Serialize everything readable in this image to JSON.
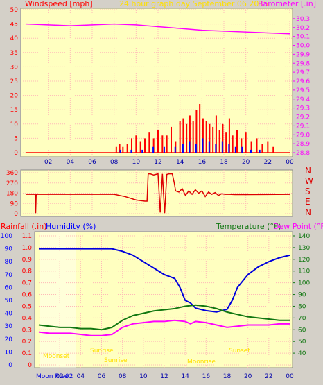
{
  "colors": {
    "panel_bg": "#ffffc0",
    "page_bg": "#d4d0c8",
    "grid": "#ffb8b8",
    "wind": "#ff0000",
    "gust_blue": "#0000ff",
    "baro": "#ff00ff",
    "dir": "#dd0000",
    "hum": "#0000dd",
    "temp": "#117711",
    "dew": "#ff00ff",
    "sun": "#ffe000",
    "red_axis": "#ff0000",
    "blue_axis": "#0000ff",
    "green_axis": "#117711",
    "magenta_axis": "#ff00ff"
  },
  "header": {
    "wind_label": "Windspeed [mph]",
    "title": "24 hour graph day   September 06 2015",
    "baro_label": "Barometer [.in]"
  },
  "lower_header": {
    "rain_label": "Rainfall (.in)",
    "hum_label": "Humidity (%)",
    "temp_label": "Temperature (°F)",
    "dew_label": "Dew Point (°F)"
  },
  "compass": [
    "N",
    "W",
    "S",
    "E",
    "N"
  ],
  "x_ticks": [
    "02",
    "04",
    "06",
    "08",
    "10",
    "12",
    "14",
    "16",
    "18",
    "20",
    "22",
    "00"
  ],
  "lower_x_ticks": [
    "02",
    "04",
    "06",
    "08",
    "10",
    "12",
    "14",
    "16",
    "18",
    "20",
    "22",
    "00"
  ],
  "annotations": {
    "moonset": "Moonset",
    "moonrise": "Moon Rise",
    "sunrise": "Sunrise",
    "sunset": "Sunset",
    "moonrise2": "Moonrise",
    "moon_time": "02"
  },
  "chart_data": [
    {
      "type": "bar",
      "title": "24 hour graph day   September 06 2015",
      "ylabel": "Windspeed [mph]",
      "ylim": [
        0,
        50
      ],
      "y_ticks": [
        0,
        5,
        10,
        15,
        20,
        25,
        30,
        35,
        40,
        45,
        50
      ],
      "x_hours": [
        0,
        24
      ],
      "series": [
        {
          "name": "Windspeed [mph]",
          "hours": [
            8.2,
            8.5,
            8.8,
            9.2,
            9.6,
            10.0,
            10.4,
            10.8,
            11.2,
            11.6,
            12.0,
            12.4,
            12.8,
            13.2,
            13.6,
            14.0,
            14.3,
            14.6,
            14.9,
            15.2,
            15.5,
            15.8,
            16.1,
            16.4,
            16.7,
            17.0,
            17.3,
            17.6,
            17.9,
            18.2,
            18.5,
            18.8,
            19.2,
            19.6,
            20.0,
            20.5,
            21.0,
            21.5,
            22.0,
            22.5
          ],
          "values": [
            2,
            3,
            2,
            3,
            5,
            6,
            4,
            5,
            7,
            5,
            8,
            6,
            6,
            9,
            4,
            11,
            12,
            10,
            13,
            11,
            15,
            17,
            12,
            11,
            10,
            9,
            13,
            8,
            10,
            7,
            12,
            6,
            8,
            5,
            7,
            4,
            5,
            3,
            4,
            2
          ]
        },
        {
          "name": "Gust",
          "hours": [
            8.5,
            9.5,
            10.5,
            11.5,
            12.5,
            13.5,
            14.2,
            14.8,
            15.4,
            16.0,
            16.6,
            17.2,
            17.8,
            18.4,
            19.0,
            19.6,
            20.4,
            21.2
          ],
          "values": [
            1,
            1,
            1,
            2,
            2,
            2,
            3,
            4,
            3,
            5,
            4,
            3,
            4,
            3,
            2,
            2,
            1,
            1
          ]
        }
      ],
      "baro_scale": {
        "ylabel": "Barometer [.in]",
        "ylim": [
          28.8,
          30.4
        ],
        "y_ticks": [
          28.8,
          28.9,
          29.0,
          29.1,
          29.2,
          29.3,
          29.4,
          29.5,
          29.6,
          29.7,
          29.8,
          29.9,
          30.0,
          30.1,
          30.2,
          30.3
        ]
      },
      "baro_series": {
        "name": "Barometer [.in]",
        "hours": [
          0,
          2,
          4,
          6,
          8,
          10,
          12,
          14,
          16,
          18,
          20,
          22,
          24
        ],
        "values": [
          30.24,
          30.23,
          30.22,
          30.23,
          30.24,
          30.23,
          30.21,
          30.19,
          30.17,
          30.16,
          30.15,
          30.14,
          30.13
        ]
      }
    },
    {
      "type": "line",
      "ylabel": "Wind direction",
      "ylim": [
        0,
        360
      ],
      "y_ticks": [
        0,
        90,
        180,
        270,
        360
      ],
      "series": [
        {
          "name": "Direction",
          "hours": [
            0,
            0.8,
            0.85,
            0.9,
            6,
            7,
            7.5,
            8,
            9,
            10,
            10.8,
            11,
            11.1,
            11.3,
            11.6,
            12,
            12.2,
            12.4,
            12.6,
            12.8,
            13.0,
            13.3,
            13.5,
            13.6,
            13.9,
            14.2,
            14.5,
            14.8,
            15.1,
            15.4,
            15.7,
            16.0,
            16.3,
            16.6,
            16.9,
            17.2,
            17.5,
            17.8,
            18.1,
            18.5,
            19,
            20,
            24
          ],
          "values": [
            170,
            170,
            5,
            170,
            170,
            170,
            170,
            170,
            150,
            120,
            110,
            110,
            350,
            350,
            340,
            350,
            10,
            350,
            5,
            345,
            350,
            350,
            260,
            200,
            190,
            220,
            160,
            200,
            170,
            210,
            180,
            200,
            150,
            190,
            170,
            185,
            160,
            175,
            170,
            170,
            168,
            168,
            170
          ]
        }
      ]
    },
    {
      "type": "line",
      "xlim": [
        0,
        24
      ],
      "series": [
        {
          "name": "Humidity (%)",
          "axis": "left",
          "ylim": [
            0,
            100
          ],
          "y_ticks": [
            0,
            10,
            20,
            30,
            40,
            50,
            60,
            70,
            80,
            90,
            100
          ],
          "hours": [
            0,
            1,
            2,
            3,
            4,
            5,
            6,
            7,
            8,
            9,
            10,
            11,
            12,
            13,
            13.5,
            14,
            14.5,
            15,
            16,
            17,
            18,
            18.5,
            19,
            20,
            21,
            22,
            23,
            24
          ],
          "values": [
            90,
            90,
            90,
            90,
            90,
            90,
            90,
            90,
            88,
            85,
            80,
            75,
            70,
            67,
            60,
            50,
            48,
            44,
            42,
            41,
            43,
            50,
            60,
            70,
            76,
            80,
            83,
            85
          ]
        },
        {
          "name": "Rainfall (.in)",
          "axis": "left2",
          "ylim": [
            0,
            1.1
          ],
          "y_ticks": [
            0,
            0.1,
            0.2,
            0.3,
            0.4,
            0.5,
            0.6,
            0.7,
            0.8,
            0.9,
            1.0,
            1.1
          ],
          "hours": [],
          "values": []
        },
        {
          "name": "Temperature (°F)",
          "axis": "right",
          "ylim": [
            30,
            140
          ],
          "y_ticks": [
            40,
            50,
            60,
            70,
            80,
            90,
            100,
            110,
            120,
            130,
            140
          ],
          "hours": [
            0,
            1,
            2,
            3,
            4,
            5,
            6,
            7,
            8,
            9,
            10,
            11,
            12,
            13,
            14,
            15,
            16,
            17,
            18,
            19,
            20,
            21,
            22,
            23,
            24
          ],
          "values": [
            64,
            63,
            62,
            62,
            61,
            61,
            60,
            62,
            68,
            72,
            74,
            76,
            77,
            78,
            80,
            81,
            80,
            78,
            75,
            73,
            71,
            70,
            69,
            68,
            68
          ]
        },
        {
          "name": "Dew Point (°F)",
          "axis": "right",
          "hours": [
            0,
            1,
            2,
            3,
            4,
            5,
            6,
            7,
            8,
            9,
            10,
            11,
            12,
            13,
            14,
            14.5,
            15,
            16,
            17,
            18,
            19,
            20,
            21,
            22,
            23,
            24
          ],
          "values": [
            58,
            57,
            57,
            57,
            56,
            55,
            55,
            56,
            62,
            65,
            66,
            67,
            67,
            68,
            67,
            65,
            67,
            66,
            64,
            62,
            63,
            64,
            64,
            64,
            65,
            65
          ]
        }
      ]
    }
  ]
}
